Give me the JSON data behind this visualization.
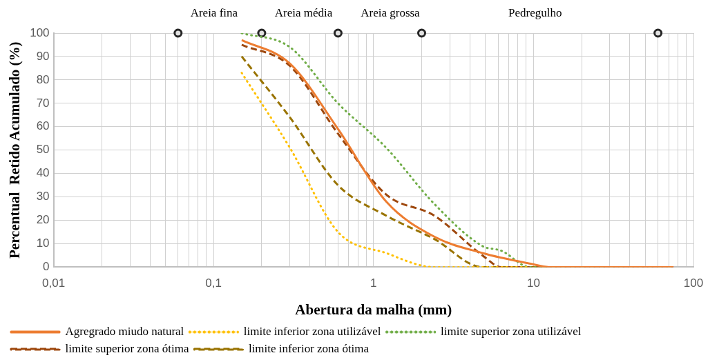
{
  "chart_data": {
    "type": "line",
    "xlabel": "Abertura da malha (mm)",
    "ylabel": "Percentual  Retido Acumulado (%)",
    "log": "x",
    "grid": true,
    "legend": "bottom",
    "marker": "none",
    "xlim": [
      0.01,
      100
    ],
    "xticks": [
      {
        "value": 0.01,
        "label": "0,01"
      },
      {
        "value": 0.02,
        "label": null
      },
      {
        "value": 0.03,
        "label": null
      },
      {
        "value": 0.04,
        "label": null
      },
      {
        "value": 0.05,
        "label": null
      },
      {
        "value": 0.06,
        "label": null
      },
      {
        "value": 0.07,
        "label": null
      },
      {
        "value": 0.08,
        "label": null
      },
      {
        "value": 0.09,
        "label": null
      },
      {
        "value": 0.1,
        "label": "0,1"
      },
      {
        "value": 0.2,
        "label": null
      },
      {
        "value": 0.3,
        "label": null
      },
      {
        "value": 0.4,
        "label": null
      },
      {
        "value": 0.5,
        "label": null
      },
      {
        "value": 0.6,
        "label": null
      },
      {
        "value": 0.7,
        "label": null
      },
      {
        "value": 0.8,
        "label": null
      },
      {
        "value": 0.9,
        "label": null
      },
      1,
      {
        "value": 2,
        "label": null
      },
      {
        "value": 3,
        "label": null
      },
      {
        "value": 4,
        "label": null
      },
      {
        "value": 5,
        "label": null
      },
      {
        "value": 6,
        "label": null
      },
      {
        "value": 7,
        "label": null
      },
      {
        "value": 8,
        "label": null
      },
      {
        "value": 9,
        "label": null
      },
      10,
      {
        "value": 20,
        "label": null
      },
      {
        "value": 30,
        "label": null
      },
      {
        "value": 40,
        "label": null
      },
      {
        "value": 50,
        "label": null
      },
      {
        "value": 60,
        "label": null
      },
      {
        "value": 70,
        "label": null
      },
      {
        "value": 80,
        "label": null
      },
      {
        "value": 90,
        "label": null
      },
      100
    ],
    "ylim": [
      0,
      100
    ],
    "yticks": [
      0,
      10,
      20,
      30,
      40,
      50,
      60,
      70,
      80,
      90,
      100
    ],
    "x": [
      0.15,
      0.3,
      0.6,
      1.2,
      2.4,
      4.8,
      6.3,
      9.5,
      12.5,
      19,
      25,
      37.5,
      50,
      63,
      75
    ],
    "series": [
      {
        "name": "Agregrado miudo natural",
        "color": "#ed7d31",
        "line_style": "solid",
        "values": [
          97,
          87,
          59,
          28,
          13,
          6,
          4,
          1.5,
          0,
          0,
          0,
          0,
          0,
          0,
          0
        ]
      },
      {
        "name": "limite inferior zona utilizável",
        "color": "#ffc000",
        "line_style": "dotted",
        "values": [
          83,
          51,
          15,
          6,
          0,
          0,
          0,
          0,
          null,
          null,
          null,
          null,
          null,
          null,
          null
        ]
      },
      {
        "name": "limite superior zona utilizável",
        "color": "#70ad47",
        "line_style": "dotted",
        "values": [
          100,
          94,
          70,
          51,
          27,
          9,
          7,
          0,
          0,
          null,
          null,
          null,
          null,
          null,
          null
        ]
      },
      {
        "name": "limite superior zona ótima",
        "color": "#9e480e",
        "line_style": "dashed",
        "values": [
          95,
          86,
          57,
          31,
          22,
          5,
          0,
          0,
          0,
          0,
          0,
          0,
          0,
          0,
          0
        ]
      },
      {
        "name": "limite inferior zona ótima",
        "color": "#997300",
        "line_style": "dashed",
        "values": [
          90,
          64,
          35,
          22,
          12,
          0,
          0,
          0,
          0,
          0,
          0,
          0,
          0,
          0,
          0
        ]
      },
      {
        "type": "scatter",
        "marker": "circle",
        "color": "#262626",
        "x": [
          0.06,
          0.2,
          0.6,
          2,
          60
        ],
        "values": [
          100,
          100,
          100,
          100,
          100
        ]
      }
    ],
    "annotations": [
      "Areia fina",
      "Areia média",
      "Areia grossa",
      "Pedregulho"
    ]
  }
}
